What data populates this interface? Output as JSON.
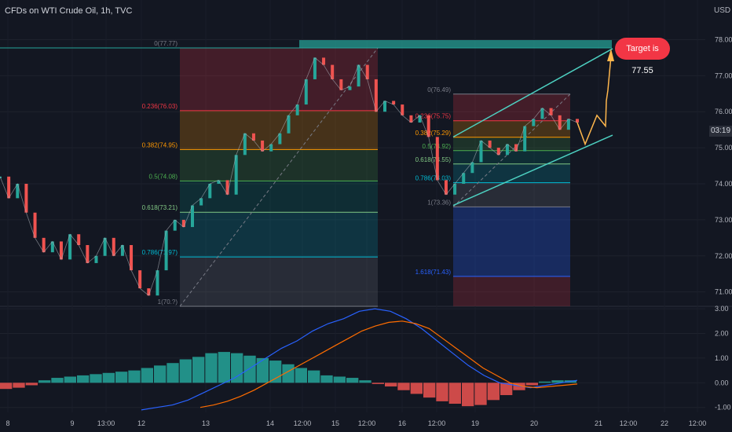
{
  "header": {
    "title": "CFDs on WTI Crude Oil, 1h, TVC",
    "currency": "USD"
  },
  "price_badge": "03:19",
  "target_label": "Target is 77.55",
  "price_axis": [
    "78.00",
    "77.00",
    "76.00",
    "75.00",
    "74.00",
    "73.00",
    "72.00",
    "71.00"
  ],
  "macd_axis": [
    "3.00",
    "2.00",
    "1.00",
    "0.00",
    "-1.00"
  ],
  "time_axis": [
    "8",
    "9",
    "13:00",
    "12",
    "13",
    "14",
    "12:00",
    "15",
    "12:00",
    "16",
    "12:00",
    "19",
    "20",
    "21",
    "12:00",
    "22",
    "12:00"
  ],
  "fib_left": {
    "levels": [
      {
        "label": "0(77.77)",
        "color": "#787b86"
      },
      {
        "label": "0.236(76.03)",
        "color": "#f23645"
      },
      {
        "label": "0.382(74.95)",
        "color": "#ff9800"
      },
      {
        "label": "0.5(74.08)",
        "color": "#4caf50"
      },
      {
        "label": "0.618(73.21)",
        "color": "#81c784"
      },
      {
        "label": "0.786(71.97)",
        "color": "#00bcd4"
      },
      {
        "label": "1(70.?)",
        "color": "#787b86"
      }
    ]
  },
  "fib_right": {
    "levels": [
      {
        "label": "0(76.49)",
        "color": "#787b86"
      },
      {
        "label": "0.236(75.75)",
        "color": "#f23645"
      },
      {
        "label": "0.382(75.29)",
        "color": "#ff9800"
      },
      {
        "label": "0.5(74.92)",
        "color": "#4caf50"
      },
      {
        "label": "0.618(74.55)",
        "color": "#81c784"
      },
      {
        "label": "0.786(74.03)",
        "color": "#00bcd4"
      },
      {
        "label": "1(73.36)",
        "color": "#787b86"
      },
      {
        "label": "1.618(71.43)",
        "color": "#2962ff"
      }
    ]
  },
  "chart_data": {
    "type": "line",
    "title": "CFDs on WTI Crude Oil, 1h, TVC",
    "ylim": [
      70.6,
      79.1
    ],
    "macd_ylim": [
      -1.2,
      3.1
    ],
    "price_series": {
      "name": "",
      "values": [
        74.2,
        73.6,
        74.0,
        73.2,
        72.5,
        72.1,
        72.4,
        71.9,
        72.6,
        72.3,
        71.8,
        72.0,
        72.5,
        72.0,
        72.3,
        71.6,
        71.1,
        70.9,
        71.6,
        72.7,
        73.0,
        72.8,
        73.4,
        73.6,
        74.0,
        74.1,
        73.7,
        74.8,
        75.4,
        75.2,
        74.9,
        75.1,
        75.4,
        75.9,
        76.2,
        76.9,
        77.5,
        77.3,
        76.9,
        76.6,
        76.7,
        77.3,
        76.9,
        76.0,
        76.3,
        76.2,
        75.9,
        75.7,
        75.9,
        75.3,
        74.1,
        73.7,
        74.0,
        74.3,
        74.6,
        75.2,
        75.0,
        74.8,
        75.1,
        74.9,
        75.6,
        75.8,
        76.1,
        75.9,
        75.5,
        75.8,
        75.7
      ],
      "color": "#26a69a"
    },
    "projection": {
      "values": [
        75.7,
        75.1,
        75.9,
        75.6,
        76.3,
        76.6,
        77.55
      ],
      "color": "#ffb74d"
    },
    "macd": {
      "histogram": [
        -0.25,
        -0.2,
        -0.1,
        0.1,
        0.2,
        0.25,
        0.3,
        0.35,
        0.4,
        0.45,
        0.5,
        0.6,
        0.7,
        0.8,
        0.95,
        1.05,
        1.2,
        1.25,
        1.2,
        1.1,
        1.0,
        0.9,
        0.75,
        0.6,
        0.5,
        0.3,
        0.25,
        0.2,
        0.1,
        -0.05,
        -0.15,
        -0.3,
        -0.45,
        -0.6,
        -0.75,
        -0.85,
        -0.95,
        -0.9,
        -0.7,
        -0.5,
        -0.3,
        -0.1,
        0.05,
        0.1,
        0.1
      ],
      "macd_line": [
        -1.1,
        -1.0,
        -0.9,
        -0.7,
        -0.4,
        -0.1,
        0.2,
        0.6,
        1.0,
        1.4,
        1.7,
        2.1,
        2.4,
        2.6,
        2.9,
        3.0,
        2.9,
        2.6,
        2.2,
        1.7,
        1.2,
        0.7,
        0.3,
        0.0,
        -0.1,
        -0.2,
        -0.1,
        0.0,
        0.1
      ],
      "signal_line": [
        -1.0,
        -0.9,
        -0.75,
        -0.55,
        -0.3,
        0.0,
        0.3,
        0.6,
        0.9,
        1.2,
        1.5,
        1.8,
        2.1,
        2.3,
        2.45,
        2.5,
        2.4,
        2.2,
        1.8,
        1.4,
        1.0,
        0.6,
        0.3,
        0.0,
        -0.15,
        -0.2,
        -0.15,
        -0.1,
        -0.05
      ],
      "colors": {
        "hist_pos": "#26a69a",
        "hist_neg": "#ef5350",
        "macd": "#2962ff",
        "signal": "#ff6d00"
      }
    }
  }
}
